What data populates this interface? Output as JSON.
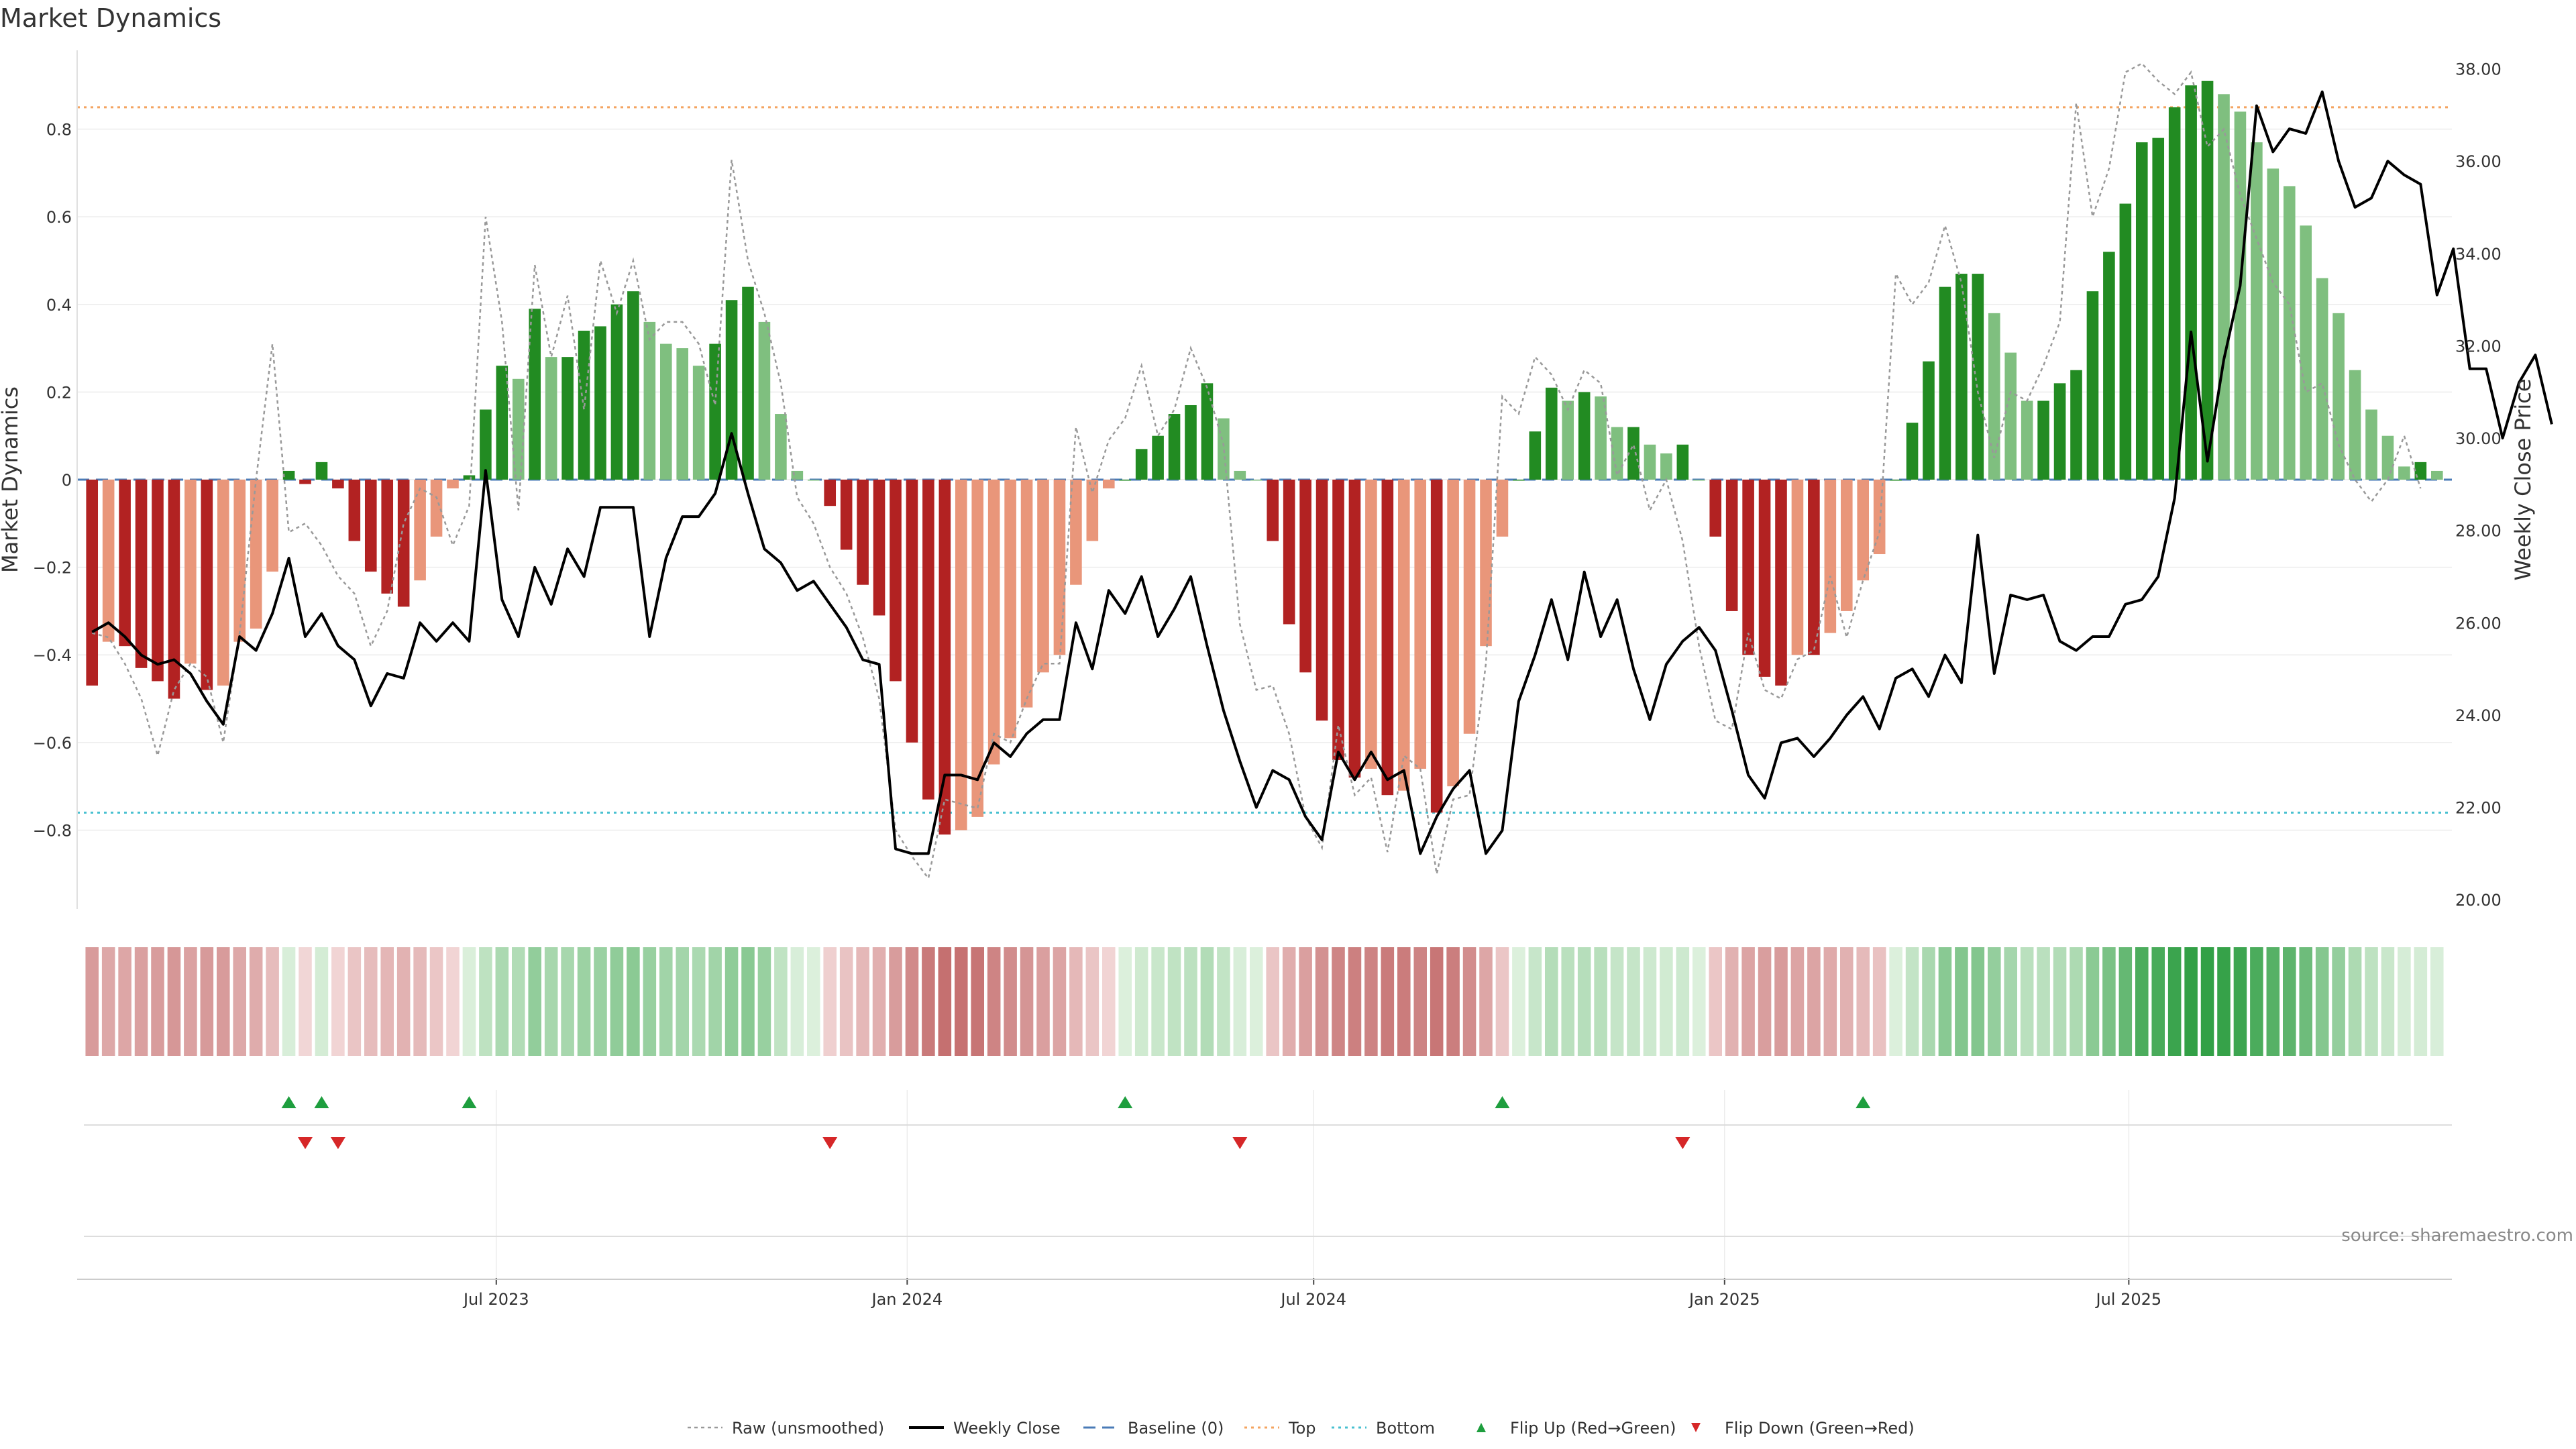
{
  "chart_data": {
    "type": "bar",
    "title": "Market Dynamics",
    "ylabel": "Market Dynamics",
    "ylabel_right": "Weekly Close Price",
    "source": "source: sharemaestro.com",
    "ylim": [
      -0.98,
      0.98
    ],
    "ylim_right": [
      19.8,
      38.4
    ],
    "yticks": [
      -0.8,
      -0.6,
      -0.4,
      -0.2,
      0,
      0.2,
      0.4,
      0.6,
      0.8
    ],
    "ytick_labels": [
      "−0.8",
      "−0.6",
      "−0.4",
      "−0.2",
      "0",
      "0.2",
      "0.4",
      "0.6",
      "0.8"
    ],
    "yticks_right": [
      20,
      22,
      24,
      26,
      28,
      30,
      32,
      34,
      36,
      38
    ],
    "ytick_labels_right": [
      "20.00",
      "22.00",
      "24.00",
      "26.00",
      "28.00",
      "30.00",
      "32.00",
      "34.00",
      "36.00",
      "38.00"
    ],
    "x_start": "2023-01-01",
    "x_end": "2025-11-16",
    "xticks": [
      {
        "date": "2023-07-01",
        "label": "Jul 2023"
      },
      {
        "date": "2024-01-01",
        "label": "Jan 2024"
      },
      {
        "date": "2024-07-01",
        "label": "Jul 2024"
      },
      {
        "date": "2025-01-01",
        "label": "Jan 2025"
      },
      {
        "date": "2025-07-01",
        "label": "Jul 2025"
      }
    ],
    "grid": true,
    "legend_position": "bottom-center",
    "reference_lines": {
      "baseline": 0,
      "top": 0.85,
      "bottom": -0.76
    },
    "colors": {
      "strong_red": "#b22222",
      "light_red": "#e9967a",
      "strong_green": "#228b22",
      "light_green": "#7fbf7f",
      "weekly_close": "#000000",
      "raw": "#999999",
      "baseline": "#4a7bb7",
      "top": "#f4a460",
      "bottom": "#48c0d0",
      "flip_up": "#1e9e3e",
      "flip_down": "#d62728"
    },
    "weekly_close": [
      25.8,
      26.0,
      25.7,
      25.3,
      25.1,
      25.2,
      24.9,
      24.3,
      23.8,
      25.7,
      25.4,
      26.2,
      27.4,
      25.7,
      26.2,
      25.5,
      25.2,
      24.2,
      24.9,
      24.8,
      26.0,
      25.6,
      26.0,
      25.6,
      29.3,
      26.5,
      25.7,
      27.2,
      26.4,
      27.6,
      27.0,
      28.5,
      28.5,
      28.5,
      25.7,
      27.4,
      28.3,
      28.3,
      28.8,
      30.1,
      28.8,
      27.6,
      27.3,
      26.7,
      26.9,
      26.4,
      25.9,
      25.2,
      25.1,
      21.1,
      21.0,
      21.0,
      22.7,
      22.7,
      22.6,
      23.4,
      23.1,
      23.6,
      23.9,
      23.9,
      26.0,
      25.0,
      26.7,
      26.2,
      27.0,
      25.7,
      26.3,
      27.0,
      25.5,
      24.1,
      23.0,
      22.0,
      22.8,
      22.6,
      21.8,
      21.3,
      23.2,
      22.6,
      23.2,
      22.6,
      22.8,
      21.0,
      21.8,
      22.4,
      22.8,
      21.0,
      21.5,
      24.3,
      25.3,
      26.5,
      25.2,
      27.1,
      25.7,
      26.5,
      25.0,
      23.9,
      25.1,
      25.6,
      25.9,
      25.4,
      24.1,
      22.7,
      22.2,
      23.4,
      23.5,
      23.1,
      23.5,
      24.0,
      24.4,
      23.7,
      24.8,
      25.0,
      24.4,
      25.3,
      24.7,
      27.9,
      24.9,
      26.6,
      26.5,
      26.6,
      25.6,
      25.4,
      25.7,
      25.7,
      26.4,
      26.5,
      27.0,
      28.7,
      32.3,
      29.5,
      31.7,
      33.3,
      37.2,
      36.2,
      36.7,
      36.6,
      37.5,
      36.0,
      35.0,
      35.2,
      36.0,
      35.7,
      35.5,
      33.1,
      34.1,
      31.5,
      31.5,
      30.0,
      31.2,
      31.8,
      30.3
    ],
    "market_dynamics": [
      -0.47,
      -0.37,
      -0.38,
      -0.43,
      -0.46,
      -0.5,
      -0.42,
      -0.48,
      -0.47,
      -0.37,
      -0.34,
      -0.21,
      0.02,
      -0.01,
      0.04,
      -0.02,
      -0.14,
      -0.21,
      -0.26,
      -0.29,
      -0.23,
      -0.13,
      -0.02,
      0.01,
      0.16,
      0.26,
      0.23,
      0.39,
      0.28,
      0.28,
      0.34,
      0.35,
      0.4,
      0.43,
      0.36,
      0.31,
      0.3,
      0.26,
      0.31,
      0.41,
      0.44,
      0.36,
      0.15,
      0.02,
      0.0,
      -0.06,
      -0.16,
      -0.24,
      -0.31,
      -0.46,
      -0.6,
      -0.73,
      -0.81,
      -0.8,
      -0.77,
      -0.65,
      -0.59,
      -0.52,
      -0.44,
      -0.4,
      -0.24,
      -0.14,
      -0.02,
      0.0,
      0.07,
      0.1,
      0.15,
      0.17,
      0.22,
      0.14,
      0.02,
      0.0,
      -0.14,
      -0.33,
      -0.44,
      -0.55,
      -0.64,
      -0.68,
      -0.66,
      -0.72,
      -0.71,
      -0.66,
      -0.76,
      -0.7,
      -0.58,
      -0.38,
      -0.13,
      0.0,
      0.11,
      0.21,
      0.18,
      0.2,
      0.19,
      0.12,
      0.12,
      0.08,
      0.06,
      0.08,
      0.0,
      -0.13,
      -0.3,
      -0.4,
      -0.45,
      -0.47,
      -0.4,
      -0.4,
      -0.35,
      -0.3,
      -0.23,
      -0.17,
      0.0,
      0.13,
      0.27,
      0.44,
      0.47,
      0.47,
      0.38,
      0.29,
      0.18,
      0.18,
      0.22,
      0.25,
      0.43,
      0.52,
      0.63,
      0.77,
      0.78,
      0.85,
      0.9,
      0.91,
      0.88,
      0.84,
      0.77,
      0.71,
      0.67,
      0.58,
      0.46,
      0.38,
      0.25,
      0.16,
      0.1,
      0.03,
      0.04,
      0.02
    ],
    "raw_unsmoothed": [
      -0.35,
      -0.36,
      -0.42,
      -0.5,
      -0.63,
      -0.48,
      -0.42,
      -0.45,
      -0.6,
      -0.35,
      0.0,
      0.31,
      -0.12,
      -0.1,
      -0.15,
      -0.22,
      -0.26,
      -0.38,
      -0.3,
      -0.1,
      -0.02,
      -0.04,
      -0.15,
      -0.06,
      0.6,
      0.36,
      -0.07,
      0.49,
      0.28,
      0.42,
      0.16,
      0.5,
      0.38,
      0.5,
      0.32,
      0.36,
      0.36,
      0.31,
      0.17,
      0.73,
      0.5,
      0.38,
      0.22,
      -0.04,
      -0.1,
      -0.2,
      -0.26,
      -0.36,
      -0.5,
      -0.8,
      -0.86,
      -0.91,
      -0.73,
      -0.74,
      -0.75,
      -0.58,
      -0.6,
      -0.5,
      -0.42,
      -0.42,
      0.12,
      -0.03,
      0.09,
      0.14,
      0.26,
      0.1,
      0.16,
      0.3,
      0.21,
      0.08,
      -0.33,
      -0.48,
      -0.47,
      -0.58,
      -0.77,
      -0.84,
      -0.56,
      -0.72,
      -0.68,
      -0.85,
      -0.63,
      -0.66,
      -0.9,
      -0.73,
      -0.72,
      -0.42,
      0.19,
      0.15,
      0.28,
      0.24,
      0.16,
      0.25,
      0.22,
      0.01,
      0.08,
      -0.07,
      0.0,
      -0.14,
      -0.38,
      -0.55,
      -0.57,
      -0.35,
      -0.48,
      -0.5,
      -0.41,
      -0.39,
      -0.22,
      -0.36,
      -0.23,
      -0.12,
      0.47,
      0.4,
      0.45,
      0.58,
      0.45,
      0.2,
      0.05,
      0.2,
      0.18,
      0.26,
      0.36,
      0.86,
      0.6,
      0.71,
      0.93,
      0.95,
      0.91,
      0.88,
      0.93,
      0.76,
      0.8,
      0.65,
      0.55,
      0.45,
      0.4,
      0.2,
      0.22,
      0.08,
      0.0,
      -0.05,
      0.0,
      0.1,
      -0.02
    ],
    "flip_up_weeks": [
      12,
      14,
      23,
      63,
      86,
      108
    ],
    "flip_down_weeks": [
      13,
      15,
      45,
      70,
      97
    ],
    "legend": [
      {
        "label": "Raw (unsmoothed)",
        "marker": "dotted-line"
      },
      {
        "label": "Weekly Close",
        "marker": "solid-line"
      },
      {
        "label": "Baseline (0)",
        "marker": "dashed-line"
      },
      {
        "label": "Top",
        "marker": "dotted-line"
      },
      {
        "label": "Bottom",
        "marker": "dotted-line"
      },
      {
        "label": "Flip Up (Red→Green)",
        "marker": "triangle-up"
      },
      {
        "label": "Flip Down (Green→Red)",
        "marker": "triangle-down"
      }
    ]
  }
}
